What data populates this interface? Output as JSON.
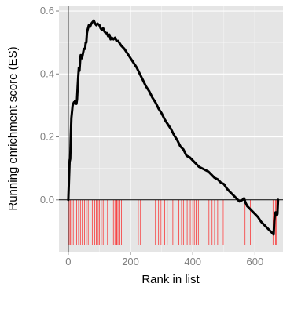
{
  "chart_data": {
    "type": "line",
    "xlabel": "Rank in list",
    "ylabel": "Running enrichment score (ES)",
    "xlim": [
      -30,
      690
    ],
    "ylim": [
      -0.165,
      0.615
    ],
    "x_ticks": [
      0,
      200,
      400,
      600
    ],
    "x_tick_labels": [
      "0",
      "200",
      "400",
      "600"
    ],
    "y_ticks": [
      0.0,
      0.2,
      0.4,
      0.6
    ],
    "y_tick_labels": [
      "0.0",
      "0.2",
      "0.4",
      "0.6"
    ],
    "grid": true,
    "legend": "none",
    "colors": {
      "panel": "#e5e5e5",
      "grid": "#ffffff",
      "line": "#000000",
      "ticks": "#ff0000",
      "zero_line": "#000000"
    },
    "series": [
      {
        "x": [
          0,
          2,
          4,
          6,
          8,
          10,
          14,
          18,
          20,
          22,
          24,
          26,
          28,
          30,
          32,
          34,
          36,
          38,
          40,
          42,
          44,
          46,
          50,
          54,
          56,
          58,
          60,
          62,
          66,
          70,
          74,
          78,
          82,
          86,
          90,
          94,
          100,
          104,
          108,
          112,
          116,
          120,
          124,
          128,
          132,
          136,
          140,
          145,
          150,
          155,
          160,
          170,
          180,
          190,
          200,
          210,
          220,
          230,
          240,
          250,
          260,
          270,
          280,
          290,
          300,
          310,
          320,
          330,
          340,
          350,
          360,
          370,
          380,
          390,
          400,
          410,
          420,
          430,
          440,
          450,
          460,
          470,
          480,
          490,
          500,
          510,
          520,
          530,
          540,
          550,
          560,
          565,
          570,
          575,
          580,
          590,
          600,
          610,
          620,
          630,
          640,
          650,
          655,
          660,
          662,
          664,
          666,
          668,
          670,
          672,
          674
        ],
        "y": [
          0.0,
          0.06,
          0.12,
          0.13,
          0.2,
          0.26,
          0.3,
          0.31,
          0.31,
          0.315,
          0.31,
          0.305,
          0.32,
          0.36,
          0.39,
          0.42,
          0.41,
          0.44,
          0.46,
          0.455,
          0.45,
          0.46,
          0.48,
          0.48,
          0.5,
          0.5,
          0.53,
          0.54,
          0.555,
          0.55,
          0.56,
          0.565,
          0.57,
          0.56,
          0.555,
          0.56,
          0.555,
          0.545,
          0.54,
          0.545,
          0.535,
          0.53,
          0.53,
          0.52,
          0.525,
          0.51,
          0.515,
          0.51,
          0.515,
          0.505,
          0.505,
          0.49,
          0.48,
          0.465,
          0.45,
          0.435,
          0.42,
          0.4,
          0.38,
          0.36,
          0.345,
          0.325,
          0.31,
          0.29,
          0.275,
          0.255,
          0.24,
          0.225,
          0.205,
          0.19,
          0.17,
          0.16,
          0.14,
          0.135,
          0.125,
          0.115,
          0.105,
          0.1,
          0.095,
          0.09,
          0.08,
          0.07,
          0.065,
          0.055,
          0.05,
          0.035,
          0.025,
          0.015,
          0.005,
          -0.005,
          0.0,
          0.005,
          -0.01,
          -0.02,
          -0.025,
          -0.035,
          -0.045,
          -0.055,
          -0.07,
          -0.08,
          -0.09,
          -0.1,
          -0.105,
          -0.11,
          -0.07,
          -0.045,
          -0.04,
          -0.04,
          -0.05,
          -0.045,
          0.0
        ]
      }
    ],
    "hit_ranks": [
      3,
      7,
      11,
      16,
      22,
      27,
      33,
      39,
      45,
      52,
      58,
      64,
      70,
      77,
      85,
      90,
      96,
      100,
      106,
      112,
      118,
      126,
      145,
      150,
      155,
      157,
      162,
      166,
      171,
      176,
      225,
      232,
      280,
      290,
      298,
      310,
      318,
      330,
      336,
      355,
      364,
      370,
      382,
      388,
      392,
      400,
      405,
      411,
      418,
      452,
      462,
      470,
      480,
      498,
      568,
      585,
      658,
      666,
      669
    ]
  }
}
